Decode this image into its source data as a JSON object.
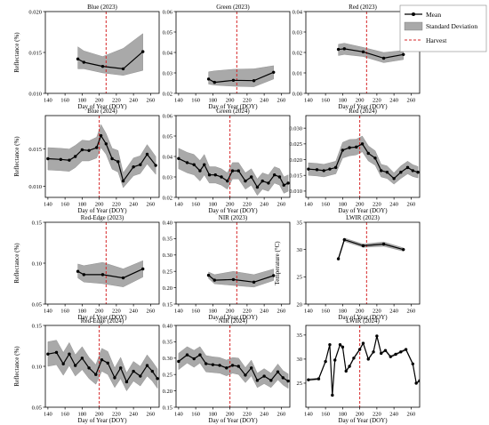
{
  "legend": {
    "mean": "Mean",
    "std": "Standard Deviation",
    "harvest": "Harvest"
  },
  "colors": {
    "mean_line": "#000000",
    "std_band": "#a9a9a9",
    "harvest_line": "#d62728"
  },
  "chart_data": [
    {
      "type": "line",
      "title": "Blue (2023)",
      "xlabel": "Day of Year (DOY)",
      "ylabel": "Reflectance (%)",
      "xlim": [
        137,
        270
      ],
      "ylim": [
        0.01,
        0.02
      ],
      "xticks": [
        140,
        160,
        180,
        200,
        220,
        240,
        260
      ],
      "yticks": [
        0.01,
        0.015,
        0.02
      ],
      "ytick_labels": [
        "0.010",
        "0.015",
        "0.020"
      ],
      "harvest": 208,
      "series": [
        {
          "x": [
            175,
            182,
            204,
            228,
            251
          ],
          "y": [
            0.0142,
            0.0138,
            0.0133,
            0.013,
            0.0151
          ],
          "lower": [
            0.013,
            0.013,
            0.0125,
            0.0122,
            0.0128
          ],
          "upper": [
            0.0157,
            0.0152,
            0.0145,
            0.0155,
            0.0173
          ]
        }
      ]
    },
    {
      "type": "line",
      "title": "Green (2023)",
      "xlabel": "Day of Year (DOY)",
      "ylabel": "",
      "xlim": [
        137,
        270
      ],
      "ylim": [
        0.02,
        0.06
      ],
      "xticks": [
        140,
        160,
        180,
        200,
        220,
        240,
        260
      ],
      "yticks": [
        0.02,
        0.03,
        0.04,
        0.05,
        0.06
      ],
      "ytick_labels": [
        "0.02",
        "0.03",
        "0.04",
        "0.05",
        "0.06"
      ],
      "harvest": 208,
      "series": [
        {
          "x": [
            175,
            182,
            204,
            228,
            251
          ],
          "y": [
            0.027,
            0.0254,
            0.0264,
            0.0262,
            0.0303
          ],
          "lower": [
            0.0245,
            0.024,
            0.0235,
            0.0232,
            0.027
          ],
          "upper": [
            0.0305,
            0.031,
            0.0318,
            0.032,
            0.0335
          ]
        }
      ]
    },
    {
      "type": "line",
      "title": "Red (2023)",
      "xlabel": "Day of Year (DOY)",
      "ylabel": "",
      "xlim": [
        137,
        270
      ],
      "ylim": [
        0.0,
        0.04
      ],
      "xticks": [
        140,
        160,
        180,
        200,
        220,
        240,
        260
      ],
      "yticks": [
        0.0,
        0.01,
        0.02,
        0.03,
        0.04
      ],
      "ytick_labels": [
        "0.00",
        "0.01",
        "0.02",
        "0.03",
        "0.04"
      ],
      "harvest": 208,
      "series": [
        {
          "x": [
            175,
            182,
            204,
            228,
            251
          ],
          "y": [
            0.0215,
            0.0218,
            0.0203,
            0.0172,
            0.019
          ],
          "lower": [
            0.0185,
            0.019,
            0.018,
            0.015,
            0.0165
          ],
          "upper": [
            0.024,
            0.0245,
            0.0225,
            0.02,
            0.021
          ]
        }
      ]
    },
    {
      "type": "line",
      "title": "Blue (2024)",
      "xlabel": "Day of Year (DOY)",
      "ylabel": "Reflectance (%)",
      "xlim": [
        137,
        270
      ],
      "ylim": [
        0.0085,
        0.0195
      ],
      "xticks": [
        140,
        160,
        180,
        200,
        220,
        240,
        260
      ],
      "yticks": [
        0.01,
        0.015
      ],
      "ytick_labels": [
        "0.010",
        "0.015"
      ],
      "harvest": 200,
      "series": [
        {
          "x": [
            140,
            155,
            165,
            172,
            180,
            188,
            197,
            202,
            208,
            215,
            222,
            228,
            240,
            248,
            256,
            266
          ],
          "y": [
            0.0137,
            0.0136,
            0.0135,
            0.014,
            0.0149,
            0.0148,
            0.0152,
            0.0168,
            0.0157,
            0.0137,
            0.0133,
            0.0107,
            0.0126,
            0.0129,
            0.0143,
            0.0128
          ],
          "lower": [
            0.0122,
            0.0121,
            0.012,
            0.0125,
            0.0134,
            0.0134,
            0.0138,
            0.0152,
            0.0143,
            0.0123,
            0.0119,
            0.0098,
            0.0114,
            0.0117,
            0.013,
            0.0116
          ],
          "upper": [
            0.0152,
            0.0151,
            0.015,
            0.0155,
            0.0162,
            0.0161,
            0.0166,
            0.0183,
            0.0171,
            0.0151,
            0.0148,
            0.0118,
            0.0138,
            0.0141,
            0.0156,
            0.014
          ]
        }
      ]
    },
    {
      "type": "line",
      "title": "Green (2024)",
      "xlabel": "Day of Year (DOY)",
      "ylabel": "",
      "xlim": [
        137,
        270
      ],
      "ylim": [
        0.02,
        0.06
      ],
      "xticks": [
        140,
        160,
        180,
        200,
        220,
        240,
        260
      ],
      "yticks": [
        0.02,
        0.03,
        0.04,
        0.05,
        0.06
      ],
      "ytick_labels": [
        "0.02",
        "0.03",
        "0.04",
        "0.05",
        "0.06"
      ],
      "harvest": 200,
      "series": [
        {
          "x": [
            140,
            150,
            158,
            165,
            170,
            176,
            183,
            190,
            197,
            203,
            210,
            218,
            225,
            232,
            238,
            245,
            252,
            258,
            263,
            268
          ],
          "y": [
            0.039,
            0.037,
            0.036,
            0.033,
            0.036,
            0.031,
            0.031,
            0.03,
            0.028,
            0.033,
            0.033,
            0.028,
            0.03,
            0.025,
            0.028,
            0.027,
            0.031,
            0.03,
            0.026,
            0.027
          ],
          "lower": [
            0.034,
            0.032,
            0.031,
            0.028,
            0.031,
            0.027,
            0.027,
            0.026,
            0.024,
            0.029,
            0.029,
            0.024,
            0.026,
            0.021,
            0.024,
            0.023,
            0.027,
            0.026,
            0.022,
            0.023
          ],
          "upper": [
            0.044,
            0.042,
            0.041,
            0.038,
            0.041,
            0.035,
            0.035,
            0.034,
            0.032,
            0.037,
            0.037,
            0.032,
            0.034,
            0.029,
            0.032,
            0.031,
            0.035,
            0.034,
            0.03,
            0.031
          ]
        }
      ]
    },
    {
      "type": "line",
      "title": "Red (2024)",
      "xlabel": "Day of Year (DOY)",
      "ylabel": "",
      "xlim": [
        137,
        270
      ],
      "ylim": [
        0.008,
        0.034
      ],
      "xticks": [
        140,
        160,
        180,
        200,
        220,
        240,
        260
      ],
      "yticks": [
        0.01,
        0.015,
        0.02,
        0.025,
        0.03
      ],
      "ytick_labels": [
        "0.010",
        "0.015",
        "0.020",
        "0.025",
        "0.030"
      ],
      "harvest": 200,
      "series": [
        {
          "x": [
            140,
            150,
            158,
            165,
            172,
            180,
            188,
            196,
            203,
            210,
            218,
            225,
            232,
            240,
            248,
            256,
            262,
            268
          ],
          "y": [
            0.017,
            0.0168,
            0.0165,
            0.017,
            0.0175,
            0.023,
            0.0238,
            0.024,
            0.025,
            0.022,
            0.0205,
            0.0165,
            0.016,
            0.014,
            0.016,
            0.0175,
            0.0165,
            0.016
          ],
          "lower": [
            0.015,
            0.0148,
            0.0145,
            0.015,
            0.0155,
            0.0205,
            0.0212,
            0.0215,
            0.0225,
            0.0196,
            0.0182,
            0.0145,
            0.014,
            0.0122,
            0.014,
            0.0155,
            0.0146,
            0.0142
          ],
          "upper": [
            0.019,
            0.0188,
            0.0185,
            0.019,
            0.0195,
            0.0255,
            0.0264,
            0.0265,
            0.0275,
            0.0244,
            0.0228,
            0.0185,
            0.018,
            0.0158,
            0.018,
            0.0195,
            0.0184,
            0.0178
          ]
        }
      ]
    },
    {
      "type": "line",
      "title": "Red-Edge (2023)",
      "xlabel": "Day of Year (DOY)",
      "ylabel": "Reflectance (%)",
      "xlim": [
        137,
        270
      ],
      "ylim": [
        0.05,
        0.15
      ],
      "xticks": [
        140,
        160,
        180,
        200,
        220,
        240,
        260
      ],
      "yticks": [
        0.05,
        0.1,
        0.15
      ],
      "ytick_labels": [
        "0.05",
        "0.10",
        "0.15"
      ],
      "harvest": 208,
      "series": [
        {
          "x": [
            175,
            182,
            204,
            228,
            251
          ],
          "y": [
            0.09,
            0.086,
            0.086,
            0.082,
            0.093
          ],
          "lower": [
            0.082,
            0.077,
            0.075,
            0.071,
            0.083
          ],
          "upper": [
            0.099,
            0.097,
            0.101,
            0.093,
            0.103
          ]
        }
      ]
    },
    {
      "type": "line",
      "title": "NIR (2023)",
      "xlabel": "Day of Year (DOY)",
      "ylabel": "",
      "xlim": [
        137,
        270
      ],
      "ylim": [
        0.15,
        0.4
      ],
      "xticks": [
        140,
        160,
        180,
        200,
        220,
        240,
        260
      ],
      "yticks": [
        0.15,
        0.2,
        0.25,
        0.3,
        0.35,
        0.4
      ],
      "ytick_labels": [
        "0.15",
        "0.20",
        "0.25",
        "0.30",
        "0.35",
        "0.40"
      ],
      "harvest": 208,
      "series": [
        {
          "x": [
            175,
            182,
            204,
            228,
            251
          ],
          "y": [
            0.238,
            0.223,
            0.225,
            0.217,
            0.237
          ],
          "lower": [
            0.228,
            0.212,
            0.207,
            0.202,
            0.222
          ],
          "upper": [
            0.248,
            0.24,
            0.25,
            0.24,
            0.257
          ]
        }
      ]
    },
    {
      "type": "line",
      "title": "LWIR (2023)",
      "xlabel": "Day of Year (DOY)",
      "ylabel": "Temperature (°C)",
      "xlim": [
        137,
        270
      ],
      "ylim": [
        20,
        35
      ],
      "xticks": [
        140,
        160,
        180,
        200,
        220,
        240,
        260
      ],
      "yticks": [
        20,
        25,
        30,
        35
      ],
      "ytick_labels": [
        "20",
        "25",
        "30",
        "35"
      ],
      "harvest": 208,
      "series": [
        {
          "x": [
            175,
            182,
            204,
            228,
            251
          ],
          "y": [
            28.3,
            31.8,
            30.7,
            31.0,
            30.0
          ],
          "lower": [
            28.0,
            31.5,
            30.4,
            30.6,
            29.7
          ],
          "upper": [
            28.6,
            32.1,
            31.0,
            31.4,
            30.3
          ]
        }
      ]
    },
    {
      "type": "line",
      "title": "Red-Edge (2024)",
      "xlabel": "Day of Year (DOY)",
      "ylabel": "Reflectance (%)",
      "xlim": [
        137,
        270
      ],
      "ylim": [
        0.05,
        0.15
      ],
      "xticks": [
        140,
        160,
        180,
        200,
        220,
        240,
        260
      ],
      "yticks": [
        0.05,
        0.1,
        0.15
      ],
      "ytick_labels": [
        "0.05",
        "0.10",
        "0.15"
      ],
      "harvest": 200,
      "series": [
        {
          "x": [
            140,
            150,
            158,
            165,
            172,
            180,
            188,
            196,
            203,
            210,
            218,
            225,
            232,
            240,
            248,
            256,
            262,
            268
          ],
          "y": [
            0.115,
            0.117,
            0.103,
            0.115,
            0.101,
            0.11,
            0.098,
            0.09,
            0.108,
            0.104,
            0.086,
            0.098,
            0.081,
            0.094,
            0.088,
            0.101,
            0.094,
            0.085
          ],
          "lower": [
            0.1,
            0.102,
            0.089,
            0.101,
            0.088,
            0.096,
            0.085,
            0.078,
            0.094,
            0.09,
            0.074,
            0.085,
            0.07,
            0.082,
            0.076,
            0.088,
            0.082,
            0.073
          ],
          "upper": [
            0.13,
            0.132,
            0.117,
            0.129,
            0.114,
            0.124,
            0.111,
            0.102,
            0.122,
            0.118,
            0.098,
            0.111,
            0.092,
            0.106,
            0.1,
            0.114,
            0.106,
            0.097
          ]
        }
      ]
    },
    {
      "type": "line",
      "title": "NIR (2024)",
      "xlabel": "Day of Year (DOY)",
      "ylabel": "",
      "xlim": [
        137,
        270
      ],
      "ylim": [
        0.15,
        0.4
      ],
      "xticks": [
        140,
        160,
        180,
        200,
        220,
        240,
        260
      ],
      "yticks": [
        0.15,
        0.2,
        0.25,
        0.3,
        0.35,
        0.4
      ],
      "ytick_labels": [
        "0.15",
        "0.20",
        "0.25",
        "0.30",
        "0.35",
        "0.40"
      ],
      "harvest": 200,
      "series": [
        {
          "x": [
            140,
            150,
            158,
            165,
            172,
            180,
            188,
            196,
            203,
            210,
            218,
            225,
            232,
            240,
            248,
            256,
            262,
            268
          ],
          "y": [
            0.29,
            0.31,
            0.298,
            0.31,
            0.283,
            0.28,
            0.278,
            0.27,
            0.278,
            0.275,
            0.248,
            0.27,
            0.232,
            0.245,
            0.232,
            0.258,
            0.24,
            0.23
          ],
          "lower": [
            0.265,
            0.285,
            0.272,
            0.285,
            0.258,
            0.256,
            0.254,
            0.246,
            0.254,
            0.25,
            0.225,
            0.246,
            0.21,
            0.222,
            0.21,
            0.234,
            0.218,
            0.208
          ],
          "upper": [
            0.315,
            0.335,
            0.324,
            0.335,
            0.308,
            0.304,
            0.302,
            0.294,
            0.302,
            0.3,
            0.271,
            0.294,
            0.254,
            0.268,
            0.254,
            0.282,
            0.262,
            0.252
          ]
        }
      ]
    },
    {
      "type": "line",
      "title": "LWIR (2024)",
      "xlabel": "Day of Year (DOY)",
      "ylabel": "",
      "xlim": [
        137,
        270
      ],
      "ylim": [
        20,
        37
      ],
      "xticks": [
        140,
        160,
        180,
        200,
        220,
        240,
        260
      ],
      "yticks": [
        25,
        30,
        35
      ],
      "ytick_labels": [
        "25",
        "30",
        "35"
      ],
      "harvest": 200,
      "series": [
        {
          "x": [
            140,
            152,
            160,
            165,
            168,
            171,
            177,
            180,
            184,
            188,
            193,
            200,
            204,
            210,
            216,
            220,
            225,
            230,
            236,
            242,
            248,
            254,
            262,
            266,
            270
          ],
          "y": [
            25.7,
            25.9,
            29.5,
            33.0,
            22.5,
            29.8,
            33.0,
            32.5,
            27.5,
            28.5,
            30.2,
            32.0,
            33.3,
            30.0,
            31.5,
            34.8,
            31.2,
            31.8,
            30.5,
            31.0,
            31.5,
            32.0,
            29.0,
            25.0,
            25.5
          ],
          "lower": [
            25.5,
            25.7,
            29.3,
            32.8,
            22.3,
            29.6,
            32.8,
            32.3,
            27.3,
            28.3,
            30.0,
            31.8,
            33.1,
            29.8,
            31.3,
            34.6,
            31.0,
            31.6,
            30.3,
            30.8,
            31.3,
            31.8,
            28.8,
            24.8,
            25.3
          ],
          "upper": [
            25.9,
            26.1,
            29.7,
            33.2,
            22.7,
            30.0,
            33.2,
            32.7,
            27.7,
            28.7,
            30.4,
            32.2,
            33.5,
            30.2,
            31.7,
            35.0,
            31.4,
            32.0,
            30.7,
            31.2,
            31.7,
            32.2,
            29.2,
            25.2,
            25.7
          ]
        }
      ]
    }
  ]
}
